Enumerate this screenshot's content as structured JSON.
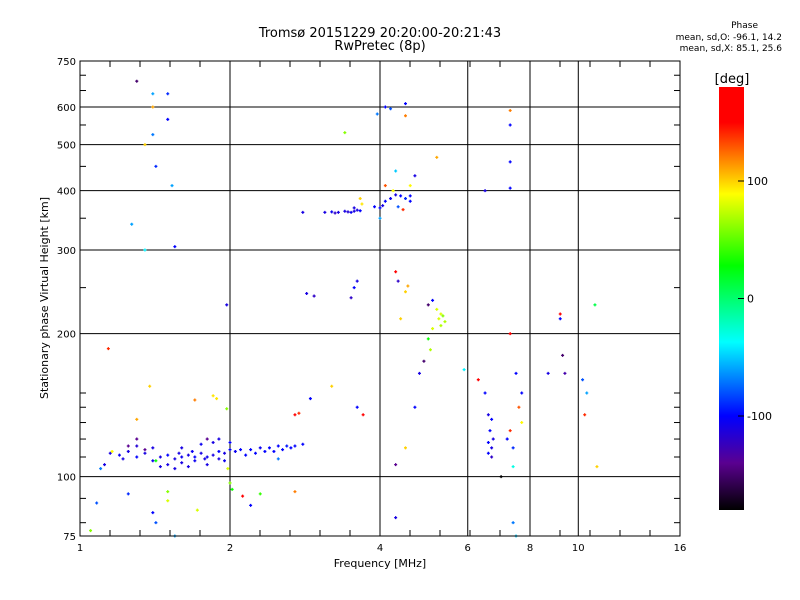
{
  "header": {
    "title": "Tromsø 20151229 20:20:00-20:21:43",
    "subtitle": "RwPretec (8p)",
    "stats_heading": "Phase",
    "stats_o": "mean, sd,O:  -96.1, 14.2",
    "stats_x": "mean, sd,X:  85.1, 25.6"
  },
  "colorbar": {
    "label": "[deg]",
    "range": [
      -180,
      180
    ],
    "ticks": [
      {
        "value": 100,
        "label": "100"
      },
      {
        "value": 0,
        "label": "0"
      },
      {
        "value": -100,
        "label": "-100"
      }
    ],
    "stops": [
      {
        "v": -180,
        "c": "#000000"
      },
      {
        "v": -140,
        "c": "#5a0090"
      },
      {
        "v": -100,
        "c": "#0000ff"
      },
      {
        "v": -37,
        "c": "#00ffff"
      },
      {
        "v": 28,
        "c": "#00ff00"
      },
      {
        "v": 89,
        "c": "#ffff00"
      },
      {
        "v": 150,
        "c": "#ff0000"
      },
      {
        "v": 180,
        "c": "#ff0000"
      }
    ]
  },
  "chart_data": {
    "type": "scatter",
    "title": "Tromsø 20151229 20:20:00-20:21:43",
    "xlabel": "Frequency [MHz]",
    "ylabel": "Stationary phase Virtual Height [km]",
    "xscale": "log",
    "yscale": "log",
    "xlim": [
      1,
      16
    ],
    "ylim": [
      75,
      750
    ],
    "xticks": [
      {
        "v": 1,
        "l": "1"
      },
      {
        "v": 2,
        "l": "2"
      },
      {
        "v": 4,
        "l": "4"
      },
      {
        "v": 6,
        "l": "6"
      },
      {
        "v": 8,
        "l": "8"
      },
      {
        "v": 10,
        "l": "10"
      },
      {
        "v": 16,
        "l": "16"
      }
    ],
    "yticks": [
      {
        "v": 75,
        "l": "75"
      },
      {
        "v": 100,
        "l": "100"
      },
      {
        "v": 200,
        "l": "200"
      },
      {
        "v": 300,
        "l": "300"
      },
      {
        "v": 400,
        "l": "400"
      },
      {
        "v": 500,
        "l": "500"
      },
      {
        "v": 600,
        "l": "600"
      },
      {
        "v": 750,
        "l": "750"
      }
    ],
    "xgrid": [
      2,
      4,
      6,
      8,
      10
    ],
    "ygrid": [
      100,
      200,
      300,
      400,
      500,
      600
    ],
    "color_variable": "phase [deg]",
    "points_fields": [
      "frequency_MHz",
      "height_km",
      "phase_deg"
    ],
    "points": [
      [
        1.15,
        112,
        -110
      ],
      [
        1.2,
        111,
        -105
      ],
      [
        1.25,
        113,
        -110
      ],
      [
        1.3,
        110,
        -100
      ],
      [
        1.35,
        112,
        -110
      ],
      [
        1.4,
        108,
        -105
      ],
      [
        1.45,
        110,
        -110
      ],
      [
        1.5,
        111,
        -100
      ],
      [
        1.55,
        109,
        -110
      ],
      [
        1.6,
        110,
        -105
      ],
      [
        1.65,
        111,
        -110
      ],
      [
        1.7,
        110,
        -100
      ],
      [
        1.75,
        112,
        -110
      ],
      [
        1.8,
        110,
        -105
      ],
      [
        1.85,
        111,
        -110
      ],
      [
        1.9,
        113,
        -100
      ],
      [
        1.95,
        112,
        -110
      ],
      [
        2.0,
        114,
        -100
      ],
      [
        2.05,
        113,
        -105
      ],
      [
        2.1,
        114,
        -100
      ],
      [
        2.2,
        114,
        -100
      ],
      [
        2.3,
        115,
        -105
      ],
      [
        2.4,
        115,
        -100
      ],
      [
        2.5,
        116,
        -100
      ],
      [
        2.6,
        116,
        -95
      ],
      [
        2.7,
        116,
        -100
      ],
      [
        2.8,
        117,
        -100
      ],
      [
        1.5,
        106,
        -110
      ],
      [
        1.6,
        107,
        -110
      ],
      [
        1.7,
        108,
        -105
      ],
      [
        1.8,
        106,
        -110
      ],
      [
        1.9,
        109,
        -110
      ],
      [
        1.6,
        115,
        -110
      ],
      [
        1.75,
        117,
        -105
      ],
      [
        1.85,
        118,
        -110
      ],
      [
        1.9,
        120,
        -110
      ],
      [
        2.0,
        118,
        -100
      ],
      [
        1.3,
        116,
        -115
      ],
      [
        1.4,
        115,
        -110
      ],
      [
        1.22,
        109,
        -110
      ],
      [
        1.12,
        106,
        -110
      ],
      [
        1.45,
        105,
        -110
      ],
      [
        1.55,
        104,
        -110
      ],
      [
        1.65,
        105,
        -110
      ],
      [
        1.95,
        108,
        -105
      ],
      [
        2.15,
        111,
        -100
      ],
      [
        2.35,
        113,
        -100
      ],
      [
        1.58,
        112,
        -110
      ],
      [
        1.68,
        113,
        -105
      ],
      [
        1.78,
        109,
        -110
      ],
      [
        2.25,
        112,
        -100
      ],
      [
        2.45,
        113,
        -100
      ],
      [
        2.55,
        114,
        -100
      ],
      [
        2.65,
        115,
        -100
      ],
      [
        1.25,
        116,
        -140
      ],
      [
        1.35,
        114,
        -140
      ],
      [
        1.8,
        120,
        -140
      ],
      [
        1.3,
        120,
        -140
      ],
      [
        1.1,
        104,
        -70
      ],
      [
        1.42,
        108,
        30
      ],
      [
        1.16,
        113,
        90
      ],
      [
        1.08,
        88,
        -80
      ],
      [
        1.25,
        92,
        -90
      ],
      [
        1.4,
        84,
        -100
      ],
      [
        1.42,
        80,
        -80
      ],
      [
        1.55,
        75,
        -60
      ],
      [
        1.5,
        89,
        80
      ],
      [
        1.5,
        93,
        60
      ],
      [
        1.05,
        77,
        60
      ],
      [
        1.7,
        145,
        120
      ],
      [
        1.85,
        148,
        95
      ],
      [
        1.88,
        146,
        95
      ],
      [
        1.97,
        139,
        60
      ],
      [
        1.98,
        104,
        80
      ],
      [
        2.0,
        97,
        60
      ],
      [
        2.02,
        94,
        30
      ],
      [
        2.12,
        91,
        170
      ],
      [
        2.2,
        87,
        -100
      ],
      [
        2.7,
        93,
        120
      ],
      [
        2.75,
        136,
        140
      ],
      [
        2.9,
        146,
        -100
      ],
      [
        1.14,
        186,
        140
      ],
      [
        1.38,
        155,
        100
      ],
      [
        1.3,
        132,
        110
      ],
      [
        1.72,
        85,
        80
      ],
      [
        2.3,
        92,
        40
      ],
      [
        2.5,
        109,
        -70
      ],
      [
        1.3,
        680,
        -150
      ],
      [
        1.4,
        640,
        -60
      ],
      [
        1.5,
        640,
        -90
      ],
      [
        1.4,
        600,
        110
      ],
      [
        1.5,
        565,
        -100
      ],
      [
        1.4,
        525,
        -70
      ],
      [
        1.35,
        500,
        100
      ],
      [
        1.42,
        450,
        -90
      ],
      [
        1.53,
        410,
        -60
      ],
      [
        1.27,
        340,
        -60
      ],
      [
        1.35,
        300,
        -40
      ],
      [
        1.55,
        305,
        -100
      ],
      [
        1.97,
        230,
        -110
      ],
      [
        2.8,
        360,
        -110
      ],
      [
        2.85,
        243,
        -110
      ],
      [
        2.95,
        240,
        -120
      ],
      [
        3.1,
        360,
        -110
      ],
      [
        3.2,
        361,
        -105
      ],
      [
        3.3,
        360,
        -110
      ],
      [
        3.4,
        362,
        -110
      ],
      [
        3.5,
        360,
        -105
      ],
      [
        3.55,
        362,
        -110
      ],
      [
        3.6,
        364,
        -110
      ],
      [
        3.65,
        363,
        -100
      ],
      [
        3.55,
        368,
        -110
      ],
      [
        3.25,
        359,
        -120
      ],
      [
        3.45,
        361,
        -115
      ],
      [
        3.65,
        385,
        100
      ],
      [
        3.68,
        375,
        95
      ],
      [
        3.4,
        530,
        60
      ],
      [
        3.9,
        370,
        -100
      ],
      [
        4.0,
        368,
        -100
      ],
      [
        4.05,
        372,
        -110
      ],
      [
        4.1,
        380,
        -100
      ],
      [
        4.2,
        385,
        -105
      ],
      [
        4.3,
        392,
        -110
      ],
      [
        4.4,
        390,
        -100
      ],
      [
        4.5,
        385,
        -90
      ],
      [
        4.6,
        380,
        -100
      ],
      [
        4.0,
        350,
        -60
      ],
      [
        4.35,
        370,
        -80
      ],
      [
        4.45,
        365,
        140
      ],
      [
        4.6,
        410,
        90
      ],
      [
        4.6,
        390,
        -100
      ],
      [
        4.7,
        430,
        -110
      ],
      [
        4.3,
        440,
        -50
      ],
      [
        4.1,
        410,
        130
      ],
      [
        4.25,
        400,
        90
      ],
      [
        3.95,
        580,
        -70
      ],
      [
        4.1,
        600,
        -100
      ],
      [
        4.2,
        595,
        -80
      ],
      [
        4.5,
        610,
        -100
      ],
      [
        4.5,
        575,
        120
      ],
      [
        5.2,
        470,
        110
      ],
      [
        4.3,
        270,
        150
      ],
      [
        4.35,
        258,
        -120
      ],
      [
        4.55,
        252,
        110
      ],
      [
        4.5,
        245,
        100
      ],
      [
        4.4,
        215,
        100
      ],
      [
        3.6,
        258,
        -110
      ],
      [
        3.55,
        250,
        -100
      ],
      [
        3.5,
        238,
        -120
      ],
      [
        5.1,
        235,
        -100
      ],
      [
        5.0,
        230,
        -150
      ],
      [
        5.2,
        225,
        80
      ],
      [
        5.3,
        220,
        80
      ],
      [
        5.25,
        215,
        80
      ],
      [
        5.35,
        218,
        60
      ],
      [
        5.4,
        212,
        70
      ],
      [
        5.3,
        208,
        70
      ],
      [
        5.1,
        205,
        80
      ],
      [
        5.0,
        195,
        30
      ],
      [
        5.05,
        185,
        70
      ],
      [
        4.9,
        175,
        -150
      ],
      [
        4.8,
        165,
        -110
      ],
      [
        5.9,
        168,
        -40
      ],
      [
        6.3,
        160,
        160
      ],
      [
        6.5,
        150,
        -100
      ],
      [
        6.6,
        135,
        -110
      ],
      [
        6.7,
        132,
        -100
      ],
      [
        6.65,
        125,
        -100
      ],
      [
        6.6,
        118,
        -100
      ],
      [
        6.7,
        115,
        -110
      ],
      [
        6.6,
        112,
        -100
      ],
      [
        6.7,
        110,
        -120
      ],
      [
        6.75,
        120,
        -110
      ],
      [
        7.0,
        100,
        -180
      ],
      [
        7.3,
        200,
        150
      ],
      [
        7.5,
        165,
        -100
      ],
      [
        7.7,
        150,
        -100
      ],
      [
        7.6,
        140,
        130
      ],
      [
        7.7,
        130,
        90
      ],
      [
        7.3,
        125,
        140
      ],
      [
        7.4,
        115,
        -90
      ],
      [
        7.2,
        120,
        -100
      ],
      [
        7.4,
        105,
        -30
      ],
      [
        9.2,
        220,
        160
      ],
      [
        9.2,
        215,
        -100
      ],
      [
        9.3,
        180,
        -150
      ],
      [
        8.7,
        165,
        -110
      ],
      [
        9.4,
        165,
        -130
      ],
      [
        10.2,
        160,
        -80
      ],
      [
        10.4,
        150,
        -60
      ],
      [
        10.3,
        135,
        140
      ],
      [
        10.9,
        105,
        100
      ],
      [
        10.8,
        230,
        10
      ],
      [
        7.3,
        405,
        -100
      ],
      [
        7.3,
        460,
        -100
      ],
      [
        7.3,
        550,
        -100
      ],
      [
        7.3,
        590,
        120
      ],
      [
        6.5,
        400,
        -110
      ],
      [
        7.4,
        80,
        -70
      ],
      [
        7.5,
        75,
        -50
      ],
      [
        4.5,
        115,
        100
      ],
      [
        4.3,
        106,
        -140
      ],
      [
        4.3,
        82,
        -110
      ],
      [
        4.7,
        140,
        -100
      ],
      [
        3.6,
        140,
        -100
      ],
      [
        3.7,
        135,
        150
      ],
      [
        3.2,
        155,
        100
      ],
      [
        2.7,
        135,
        150
      ]
    ]
  }
}
